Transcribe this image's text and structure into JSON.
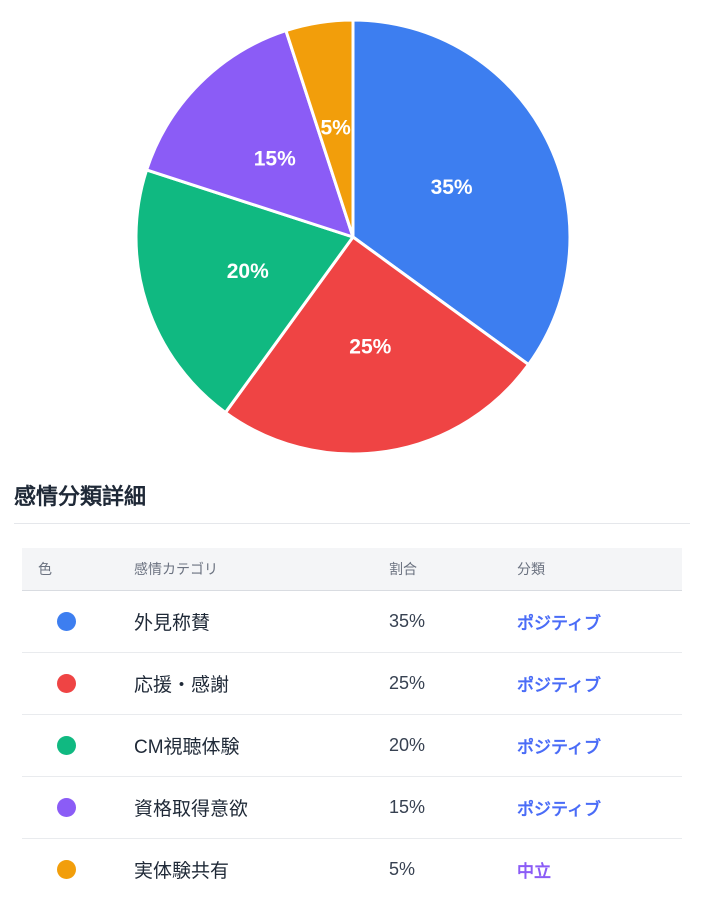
{
  "chart_data": {
    "type": "pie",
    "labels": [
      "外見称賛",
      "応援・感謝",
      "CM視聴体験",
      "資格取得意欲",
      "実体験共有"
    ],
    "values": [
      35,
      25,
      20,
      15,
      5
    ],
    "colors": [
      "#3D7EF0",
      "#EF4444",
      "#10B981",
      "#8B5CF6",
      "#F29E0B"
    ],
    "slice_labels": [
      "35%",
      "25%",
      "20%",
      "15%",
      "5%"
    ],
    "start_angle_deg": 0,
    "direction": "clockwise",
    "slice_label_color": "#FFFFFF",
    "slice_border_color": "#FFFFFF",
    "legend": "none"
  },
  "section": {
    "title": "感情分類詳細"
  },
  "table": {
    "headers": {
      "color": "色",
      "category": "感情カテゴリ",
      "percent": "割合",
      "classification": "分類"
    },
    "rows": [
      {
        "color": "#3D7EF0",
        "category": "外見称賛",
        "percent": "35%",
        "classification": "ポジティブ",
        "classification_color": "#4A6CF7"
      },
      {
        "color": "#EF4444",
        "category": "応援・感謝",
        "percent": "25%",
        "classification": "ポジティブ",
        "classification_color": "#4A6CF7"
      },
      {
        "color": "#10B981",
        "category": "CM視聴体験",
        "percent": "20%",
        "classification": "ポジティブ",
        "classification_color": "#4A6CF7"
      },
      {
        "color": "#8B5CF6",
        "category": "資格取得意欲",
        "percent": "15%",
        "classification": "ポジティブ",
        "classification_color": "#4A6CF7"
      },
      {
        "color": "#F29E0B",
        "category": "実体験共有",
        "percent": "5%",
        "classification": "中立",
        "classification_color": "#8B5CF6"
      }
    ]
  }
}
